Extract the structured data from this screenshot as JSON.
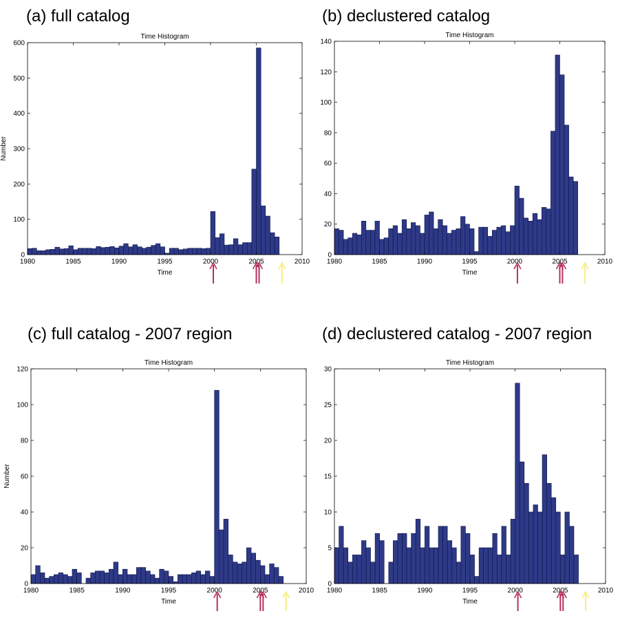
{
  "panels": [
    {
      "label": "(a) full catalog"
    },
    {
      "label": "(b) declustered catalog"
    },
    {
      "label": "(c) full catalog - 2007 region"
    },
    {
      "label": "(d) declustered catalog - 2007 region"
    }
  ],
  "colors": {
    "bar": "#2e3a87",
    "bar_edge": "#0d1347",
    "red_arrow": "#b5305a",
    "yellow_arrow": "#f7ec7a"
  },
  "chart_data": [
    {
      "type": "bar",
      "title": "Time Histogram",
      "xlabel": "Time",
      "ylabel": "Number",
      "xlim": [
        1980,
        2010
      ],
      "ylim": [
        0,
        600
      ],
      "xticks": [
        1980,
        1985,
        1990,
        1995,
        2000,
        2005,
        2010
      ],
      "yticks": [
        0,
        100,
        200,
        300,
        400,
        500,
        600
      ],
      "bin_start": 1980,
      "bin_width": 0.5,
      "values": [
        17,
        18,
        11,
        11,
        14,
        15,
        21,
        16,
        17,
        25,
        14,
        18,
        18,
        18,
        17,
        23,
        20,
        21,
        23,
        19,
        24,
        31,
        22,
        28,
        22,
        18,
        21,
        26,
        31,
        22,
        4,
        18,
        18,
        14,
        16,
        18,
        18,
        18,
        17,
        18,
        122,
        48,
        59,
        27,
        28,
        45,
        28,
        34,
        34,
        242,
        585,
        138,
        109,
        62,
        50
      ],
      "arrows": [
        {
          "x": 2000.3,
          "color": "red"
        },
        {
          "x": 2005.0,
          "color": "red"
        },
        {
          "x": 2005.3,
          "color": "red"
        },
        {
          "x": 2007.8,
          "color": "yellow"
        }
      ]
    },
    {
      "type": "bar",
      "title": "Time Histogram",
      "xlabel": "Time",
      "ylabel": "",
      "xlim": [
        1980,
        2010
      ],
      "ylim": [
        0,
        140
      ],
      "xticks": [
        1980,
        1985,
        1990,
        1995,
        2000,
        2005,
        2010
      ],
      "yticks": [
        0,
        20,
        40,
        60,
        80,
        100,
        120,
        140
      ],
      "bin_start": 1980,
      "bin_width": 0.5,
      "values": [
        17,
        16,
        10,
        11,
        14,
        13,
        22,
        16,
        16,
        22,
        10,
        11,
        17,
        19,
        14,
        23,
        17,
        21,
        19,
        14,
        26,
        28,
        17,
        23,
        19,
        14,
        16,
        17,
        25,
        20,
        17,
        2,
        18,
        18,
        12,
        16,
        18,
        19,
        15,
        19,
        45,
        37,
        24,
        22,
        27,
        23,
        31,
        30,
        81,
        131,
        118,
        85,
        51,
        48
      ],
      "arrows": [
        {
          "x": 2000.3,
          "color": "red"
        },
        {
          "x": 2005.0,
          "color": "red"
        },
        {
          "x": 2005.3,
          "color": "red"
        },
        {
          "x": 2007.8,
          "color": "yellow"
        }
      ]
    },
    {
      "type": "bar",
      "title": "Time Histogram",
      "xlabel": "Time",
      "ylabel": "Number",
      "xlim": [
        1980,
        2010
      ],
      "ylim": [
        0,
        120
      ],
      "xticks": [
        1980,
        1985,
        1990,
        1995,
        2000,
        2005,
        2010
      ],
      "yticks": [
        0,
        20,
        40,
        60,
        80,
        100,
        120
      ],
      "bin_start": 1980,
      "bin_width": 0.5,
      "values": [
        5,
        10,
        6,
        3,
        4,
        5,
        6,
        5,
        4,
        8,
        6,
        0,
        3,
        6,
        7,
        7,
        6,
        8,
        12,
        5,
        8,
        5,
        5,
        9,
        9,
        7,
        5,
        3,
        8,
        7,
        4,
        1,
        5,
        5,
        5,
        6,
        7,
        5,
        7,
        4,
        108,
        30,
        36,
        16,
        12,
        11,
        12,
        20,
        17,
        13,
        10,
        5,
        11,
        9,
        4
      ],
      "arrows": [
        {
          "x": 2000.3,
          "color": "red"
        },
        {
          "x": 2005.0,
          "color": "red"
        },
        {
          "x": 2005.3,
          "color": "red"
        },
        {
          "x": 2007.8,
          "color": "yellow"
        }
      ]
    },
    {
      "type": "bar",
      "title": "Time Histogram",
      "xlabel": "Time",
      "ylabel": "",
      "xlim": [
        1980,
        2010
      ],
      "ylim": [
        0,
        30
      ],
      "xticks": [
        1980,
        1985,
        1990,
        1995,
        2000,
        2005,
        2010
      ],
      "yticks": [
        0,
        5,
        10,
        15,
        20,
        25,
        30
      ],
      "bin_start": 1980,
      "bin_width": 0.5,
      "values": [
        5,
        8,
        5,
        3,
        4,
        4,
        6,
        5,
        3,
        7,
        6,
        0,
        3,
        6,
        7,
        7,
        5,
        7,
        9,
        5,
        8,
        5,
        5,
        8,
        8,
        6,
        5,
        3,
        8,
        7,
        4,
        1,
        5,
        5,
        5,
        7,
        4,
        8,
        4,
        9,
        28,
        17,
        14,
        10,
        11,
        10,
        18,
        14,
        12,
        10,
        4,
        10,
        8,
        4
      ],
      "arrows": [
        {
          "x": 2000.3,
          "color": "red"
        },
        {
          "x": 2005.0,
          "color": "red"
        },
        {
          "x": 2005.3,
          "color": "red"
        },
        {
          "x": 2007.8,
          "color": "yellow"
        }
      ]
    }
  ]
}
